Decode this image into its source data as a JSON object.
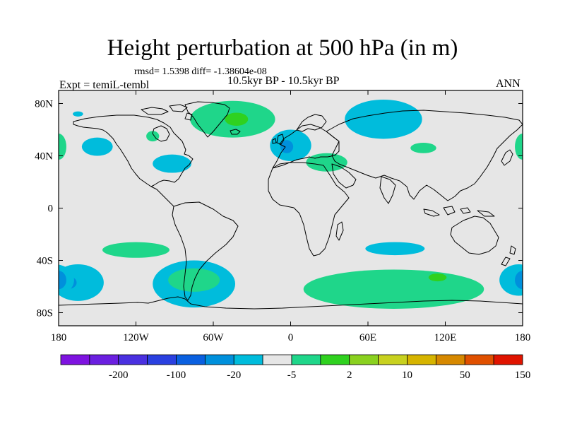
{
  "header": {
    "title": "Height perturbation at 500 hPa (in m)",
    "stats": "rmsd= 1.5398 diff= -1.38604e-08",
    "experiment": "Expt = temiL-tembl",
    "period": "10.5kyr BP - 10.5kyr BP",
    "season": "ANN"
  },
  "map": {
    "projection": "cylindrical equidistant",
    "lon_range": [
      -180,
      180
    ],
    "lat_range": [
      -90,
      90
    ],
    "x_ticks": [
      {
        "lon": -180,
        "label": "180"
      },
      {
        "lon": -120,
        "label": "120W"
      },
      {
        "lon": -60,
        "label": "60W"
      },
      {
        "lon": 0,
        "label": "0"
      },
      {
        "lon": 60,
        "label": "60E"
      },
      {
        "lon": 120,
        "label": "120E"
      },
      {
        "lon": 180,
        "label": "180"
      }
    ],
    "y_ticks": [
      {
        "lat": 80,
        "label": "80N"
      },
      {
        "lat": 40,
        "label": "40N"
      },
      {
        "lat": 0,
        "label": "0"
      },
      {
        "lat": -40,
        "label": "40S"
      },
      {
        "lat": -80,
        "label": "80S"
      }
    ],
    "background_color": "#e6e6e6",
    "anomaly_regions": [
      {
        "name": "n-atlantic-green",
        "level": "2 to 5",
        "color": "#1fd68a",
        "lon": -45,
        "lat": 68,
        "dlon": 33,
        "dlat": 14
      },
      {
        "name": "greenland-green-core",
        "level": "5 to 10",
        "color": "#2fd11f",
        "lon": -42,
        "lat": 68,
        "dlon": 9,
        "dlat": 5
      },
      {
        "name": "n-pacific-west-green",
        "level": "2 to 5",
        "color": "#1fd68a",
        "lon": -180,
        "lat": 47,
        "dlon": 6,
        "dlat": 10
      },
      {
        "name": "n-pacific-blue",
        "level": "-5 to -2",
        "color": "#00bcdc",
        "lon": -150,
        "lat": 47,
        "dlon": 12,
        "dlat": 7
      },
      {
        "name": "us-blue",
        "level": "-5 to -2",
        "color": "#00bcdc",
        "lon": -92,
        "lat": 34,
        "dlon": 15,
        "dlat": 7
      },
      {
        "name": "n-america-green-small",
        "level": "2 to 5",
        "color": "#1fd68a",
        "lon": -107,
        "lat": 55,
        "dlon": 5,
        "dlat": 4
      },
      {
        "name": "alaska-blue-small",
        "level": "-5 to -2",
        "color": "#00bcdc",
        "lon": -165,
        "lat": 72,
        "dlon": 4,
        "dlat": 2
      },
      {
        "name": "europe-blue",
        "level": "-5 to -2",
        "color": "#00bcdc",
        "lon": 0,
        "lat": 48,
        "dlon": 16,
        "dlat": 12
      },
      {
        "name": "europe-blue-core",
        "level": "-20 to -5",
        "color": "#0090dc",
        "lon": -3,
        "lat": 47,
        "dlon": 5,
        "dlat": 5
      },
      {
        "name": "mediterranean-green",
        "level": "2 to 5",
        "color": "#1fd68a",
        "lon": 28,
        "lat": 35,
        "dlon": 16,
        "dlat": 7
      },
      {
        "name": "siberia-blue",
        "level": "-5 to -2",
        "color": "#00bcdc",
        "lon": 72,
        "lat": 68,
        "dlon": 30,
        "dlat": 15
      },
      {
        "name": "central-asia-green",
        "level": "2 to 5",
        "color": "#1fd68a",
        "lon": 103,
        "lat": 46,
        "dlon": 10,
        "dlat": 4
      },
      {
        "name": "s-pacific-green",
        "level": "2 to 5",
        "color": "#1fd68a",
        "lon": -120,
        "lat": -32,
        "dlon": 26,
        "dlat": 6
      },
      {
        "name": "s-pacific-west-blue",
        "level": "-5 to -2",
        "color": "#00bcdc",
        "lon": -165,
        "lat": -57,
        "dlon": 20,
        "dlat": 14
      },
      {
        "name": "s-pacific-west-blue-core",
        "level": "-20 to -5",
        "color": "#0090dc",
        "lon": -173,
        "lat": -57,
        "dlon": 7,
        "dlat": 5
      },
      {
        "name": "s-america-blue",
        "level": "-5 to -2",
        "color": "#00bcdc",
        "lon": -75,
        "lat": -58,
        "dlon": 32,
        "dlat": 18
      },
      {
        "name": "s-america-green",
        "level": "2 to 5",
        "color": "#1fd68a",
        "lon": -75,
        "lat": -55,
        "dlon": 20,
        "dlat": 9
      },
      {
        "name": "s-indian-green",
        "level": "2 to 5",
        "color": "#1fd68a",
        "lon": 80,
        "lat": -62,
        "dlon": 70,
        "dlat": 15
      },
      {
        "name": "s-indian-green-core",
        "level": "5 to 10",
        "color": "#2fd11f",
        "lon": 114,
        "lat": -53,
        "dlon": 7,
        "dlat": 3
      },
      {
        "name": "s-indian-blue",
        "level": "-5 to -2",
        "color": "#00bcdc",
        "lon": 81,
        "lat": -31,
        "dlon": 23,
        "dlat": 5
      },
      {
        "name": "antarctic-east-blue",
        "level": "-5 to -2",
        "color": "#00bcdc",
        "lon": 177,
        "lat": -55,
        "dlon": 15,
        "dlat": 12
      },
      {
        "name": "antarctic-east-blue-core",
        "level": "-20 to -5",
        "color": "#0090dc",
        "lon": 180,
        "lat": -55,
        "dlon": 6,
        "dlat": 7
      }
    ]
  },
  "colorbar": {
    "colors": [
      "#7e13e0",
      "#6b1fe0",
      "#4a30e0",
      "#2a40e0",
      "#0a60e0",
      "#0090dc",
      "#00bcdc",
      "#e6e6e6",
      "#1fd68a",
      "#2fd11f",
      "#8ad11f",
      "#c8d11f",
      "#d6b400",
      "#d68800",
      "#e05000",
      "#e01400"
    ],
    "labels": [
      {
        "after_index": 1,
        "text": "-200"
      },
      {
        "after_index": 3,
        "text": "-100"
      },
      {
        "after_index": 5,
        "text": "-20"
      },
      {
        "after_index": 7,
        "text": "-5"
      },
      {
        "after_index": 9,
        "text": "2"
      },
      {
        "after_index": 11,
        "text": "10"
      },
      {
        "after_index": 13,
        "text": "50"
      },
      {
        "after_index": 15,
        "text": "150"
      }
    ]
  }
}
